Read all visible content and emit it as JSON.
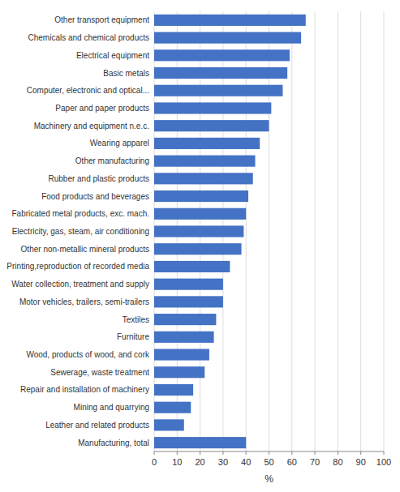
{
  "chart_data": {
    "type": "bar",
    "orientation": "horizontal",
    "categories": [
      "Other transport equipment",
      "Chemicals and chemical products",
      "Electrical equipment",
      "Basic metals",
      "Computer, electronic and optical...",
      "Paper and paper products",
      "Machinery and equipment n.e.c.",
      "Wearing apparel",
      "Other manufacturing",
      "Rubber and plastic products",
      "Food products and beverages",
      "Fabricated metal products, exc. mach.",
      "Electricity, gas, steam, air conditioning",
      "Other non-metallic mineral products",
      "Printing,reproduction of recorded media",
      "Water collection, treatment and supply",
      "Motor vehicles, trailers, semi-trailers",
      "Textiles",
      "Furniture",
      "Wood, products of wood, and cork",
      "Sewerage, waste treatment",
      "Repair and installation  of machinery",
      "Mining and quarrying",
      "Leather and related products",
      "Manufacturing, total"
    ],
    "values": [
      66,
      64,
      59,
      58,
      56,
      51,
      50,
      46,
      44,
      43,
      41,
      40,
      39,
      38,
      33,
      30,
      30,
      27,
      26,
      24,
      22,
      17,
      16,
      13,
      40
    ],
    "color": "#4472c4",
    "xlabel": "%",
    "xlim": [
      0,
      100
    ],
    "xticks": [
      0,
      10,
      20,
      30,
      40,
      50,
      60,
      70,
      80,
      90,
      100
    ],
    "grid": true
  }
}
